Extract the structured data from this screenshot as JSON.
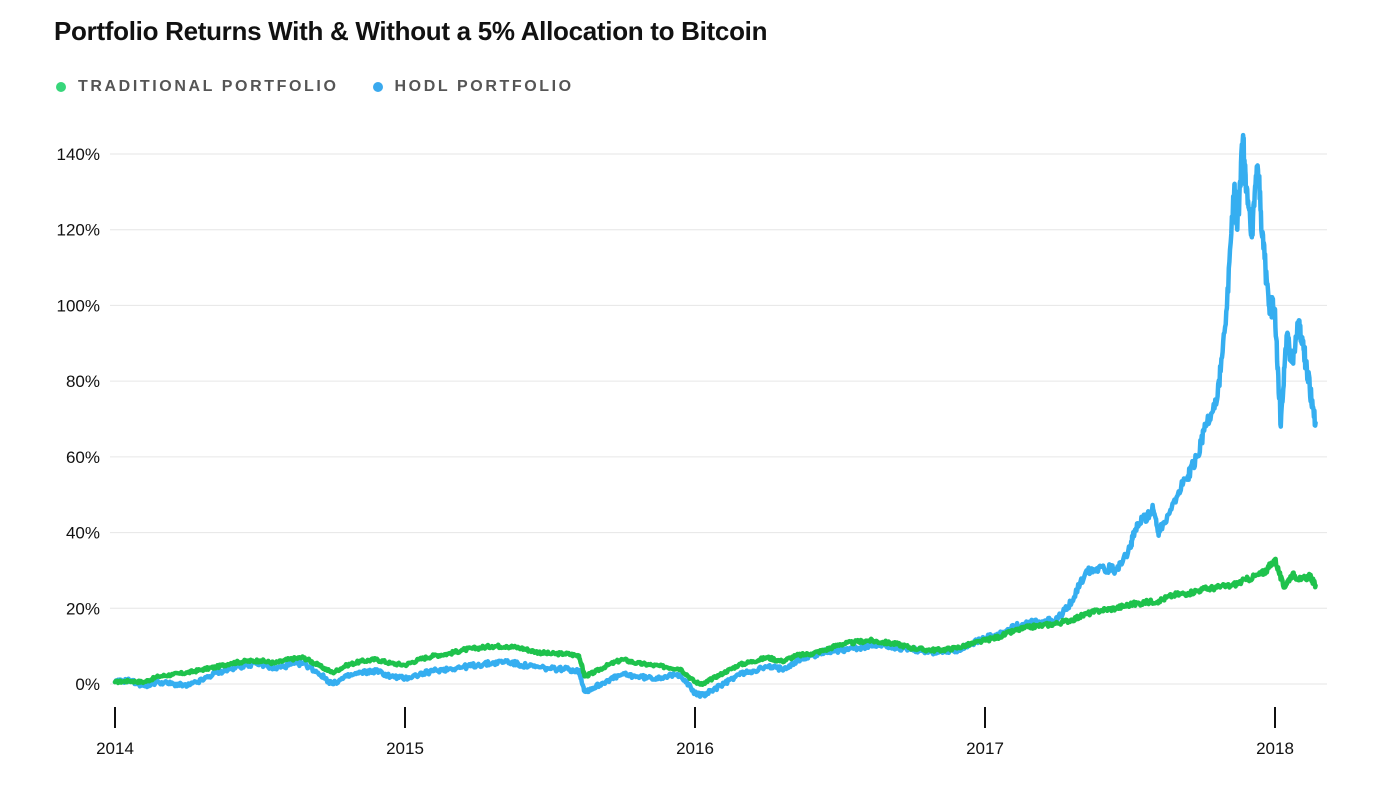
{
  "chart_data": {
    "type": "line",
    "title": "Portfolio Returns With & Without a 5% Allocation to Bitcoin",
    "xlabel": "",
    "ylabel": "",
    "xlim": [
      2014.0,
      2018.15
    ],
    "ylim": [
      -5,
      145
    ],
    "y_ticks": [
      0,
      20,
      40,
      60,
      80,
      100,
      120,
      140
    ],
    "y_tick_labels": [
      "0%",
      "20%",
      "40%",
      "60%",
      "80%",
      "100%",
      "120%",
      "140%"
    ],
    "x_ticks": [
      2014,
      2015,
      2016,
      2017,
      2018
    ],
    "x_tick_labels": [
      "2014",
      "2015",
      "2016",
      "2017",
      "2018"
    ],
    "grid": true,
    "legend_position": "top-left",
    "series": [
      {
        "name": "TRADITIONAL PORTFOLIO",
        "color": "#1ec24c",
        "legend_color": "#37d67a",
        "x": [
          2014.0,
          2014.05,
          2014.1,
          2014.15,
          2014.2,
          2014.25,
          2014.3,
          2014.35,
          2014.4,
          2014.45,
          2014.5,
          2014.55,
          2014.6,
          2014.65,
          2014.7,
          2014.75,
          2014.8,
          2014.85,
          2014.9,
          2014.95,
          2015.0,
          2015.05,
          2015.1,
          2015.15,
          2015.2,
          2015.25,
          2015.3,
          2015.35,
          2015.4,
          2015.45,
          2015.5,
          2015.55,
          2015.6,
          2015.62,
          2015.65,
          2015.7,
          2015.75,
          2015.8,
          2015.85,
          2015.9,
          2015.95,
          2016.0,
          2016.03,
          2016.05,
          2016.1,
          2016.15,
          2016.2,
          2016.25,
          2016.3,
          2016.35,
          2016.4,
          2016.45,
          2016.5,
          2016.55,
          2016.6,
          2016.65,
          2016.7,
          2016.75,
          2016.8,
          2016.85,
          2016.9,
          2016.95,
          2017.0,
          2017.05,
          2017.1,
          2017.15,
          2017.2,
          2017.25,
          2017.3,
          2017.35,
          2017.4,
          2017.45,
          2017.5,
          2017.55,
          2017.6,
          2017.65,
          2017.7,
          2017.75,
          2017.8,
          2017.85,
          2017.9,
          2017.95,
          2017.97,
          2018.0,
          2018.03,
          2018.06,
          2018.09,
          2018.12,
          2018.14
        ],
        "y": [
          0.5,
          0.8,
          0.5,
          2.0,
          2.5,
          3.0,
          3.8,
          4.5,
          5.5,
          6.0,
          6.2,
          5.5,
          6.5,
          7.0,
          5.0,
          3.0,
          5.0,
          6.0,
          6.5,
          5.5,
          5.0,
          6.5,
          7.5,
          8.0,
          9.0,
          9.5,
          10.0,
          10.0,
          9.5,
          8.5,
          8.0,
          8.0,
          7.5,
          2.0,
          3.0,
          5.0,
          6.5,
          5.5,
          5.0,
          4.5,
          4.0,
          0.5,
          0.0,
          1.0,
          3.0,
          5.0,
          6.0,
          7.0,
          6.0,
          7.5,
          8.0,
          9.0,
          10.5,
          11.0,
          11.5,
          11.0,
          10.5,
          9.5,
          9.0,
          9.0,
          9.5,
          10.5,
          11.5,
          12.5,
          14.0,
          15.0,
          15.5,
          16.0,
          17.0,
          18.5,
          19.5,
          20.0,
          21.0,
          21.5,
          22.0,
          23.5,
          24.0,
          25.0,
          25.5,
          26.0,
          27.5,
          29.0,
          30.0,
          33.0,
          25.5,
          29.0,
          27.5,
          28.5,
          26.0
        ]
      },
      {
        "name": "HODL PORTFOLIO",
        "color": "#35aef0",
        "legend_color": "#3aa9ee",
        "x": [
          2014.0,
          2014.05,
          2014.1,
          2014.15,
          2014.2,
          2014.25,
          2014.3,
          2014.35,
          2014.4,
          2014.45,
          2014.5,
          2014.55,
          2014.6,
          2014.65,
          2014.7,
          2014.75,
          2014.8,
          2014.85,
          2014.9,
          2014.95,
          2015.0,
          2015.05,
          2015.1,
          2015.15,
          2015.2,
          2015.25,
          2015.3,
          2015.35,
          2015.4,
          2015.45,
          2015.5,
          2015.55,
          2015.6,
          2015.62,
          2015.65,
          2015.7,
          2015.75,
          2015.8,
          2015.85,
          2015.9,
          2015.95,
          2016.0,
          2016.03,
          2016.05,
          2016.1,
          2016.15,
          2016.2,
          2016.25,
          2016.3,
          2016.35,
          2016.4,
          2016.45,
          2016.5,
          2016.55,
          2016.6,
          2016.65,
          2016.7,
          2016.75,
          2016.8,
          2016.85,
          2016.9,
          2016.95,
          2017.0,
          2017.05,
          2017.1,
          2017.15,
          2017.2,
          2017.25,
          2017.3,
          2017.35,
          2017.4,
          2017.45,
          2017.5,
          2017.52,
          2017.55,
          2017.58,
          2017.6,
          2017.65,
          2017.7,
          2017.73,
          2017.76,
          2017.8,
          2017.83,
          2017.86,
          2017.87,
          2017.89,
          2017.9,
          2017.92,
          2017.94,
          2017.96,
          2017.98,
          2018.0,
          2018.02,
          2018.04,
          2018.06,
          2018.08,
          2018.1,
          2018.12,
          2018.14
        ],
        "y": [
          0.5,
          1.0,
          -0.5,
          0.5,
          0.0,
          -0.5,
          1.0,
          3.0,
          4.0,
          5.0,
          5.5,
          4.0,
          5.0,
          5.5,
          3.0,
          0.0,
          2.0,
          3.0,
          3.5,
          2.0,
          1.5,
          2.5,
          3.5,
          4.0,
          4.5,
          5.0,
          5.5,
          6.0,
          5.0,
          4.5,
          4.0,
          4.0,
          3.5,
          -2.0,
          -1.0,
          1.0,
          2.5,
          2.0,
          1.5,
          2.0,
          2.5,
          -2.5,
          -3.0,
          -2.0,
          0.0,
          2.5,
          3.5,
          4.5,
          4.0,
          6.0,
          7.5,
          8.5,
          9.0,
          9.5,
          10.0,
          10.5,
          9.5,
          9.0,
          8.5,
          8.5,
          9.0,
          10.5,
          12.0,
          13.0,
          15.0,
          16.0,
          16.5,
          17.0,
          22.0,
          30.0,
          31.0,
          30.0,
          36.0,
          41.0,
          44.0,
          46.0,
          40.0,
          48.0,
          55.0,
          60.0,
          68.0,
          75.0,
          95.0,
          132.0,
          120.0,
          145.0,
          130.0,
          118.0,
          137.0,
          115.0,
          100.0,
          99.0,
          68.0,
          92.0,
          85.0,
          95.0,
          88.0,
          78.0,
          69.0
        ]
      }
    ]
  }
}
